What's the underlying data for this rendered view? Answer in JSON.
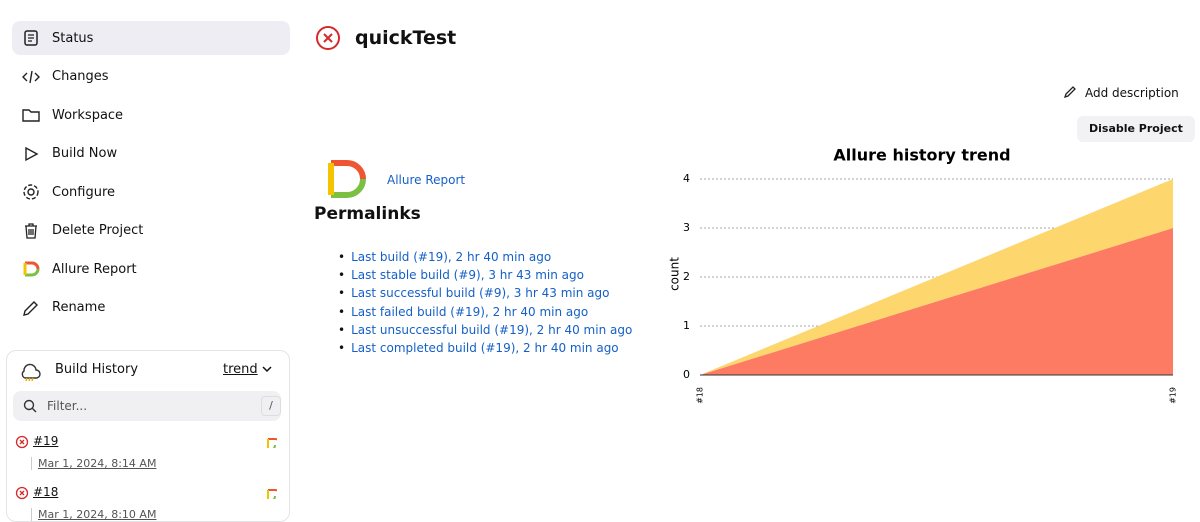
{
  "sidebar": {
    "items": [
      "Status",
      "Changes",
      "Workspace",
      "Build Now",
      "Configure",
      "Delete Project",
      "Allure Report",
      "Rename"
    ]
  },
  "build_history": {
    "title": "Build History",
    "trend": "trend",
    "filter_placeholder": "Filter...",
    "shortcut": "/",
    "builds": [
      {
        "number": "#19",
        "date": "Mar 1, 2024, 8:14 AM"
      },
      {
        "number": "#18",
        "date": "Mar 1, 2024, 8:10 AM"
      }
    ]
  },
  "header": {
    "title": "quickTest",
    "add_description": "Add description",
    "disable_project": "Disable Project"
  },
  "allure_link": "Allure Report",
  "permalinks": {
    "title": "Permalinks",
    "links": [
      "Last build (#19), 2 hr 40 min ago",
      "Last stable build (#9), 3 hr 43 min ago",
      "Last successful build (#9), 3 hr 43 min ago",
      "Last failed build (#19), 2 hr 40 min ago",
      "Last unsuccessful build (#19), 2 hr 40 min ago",
      "Last completed build (#19), 2 hr 40 min ago"
    ]
  },
  "chart_data": {
    "type": "stacked_area",
    "title": "Allure history trend",
    "y_label": "count",
    "categories": [
      "#18",
      "#19"
    ],
    "series": [
      {
        "color": "#fd7b62",
        "values": [
          0,
          3
        ]
      },
      {
        "color": "#fdd66e",
        "values": [
          0,
          1
        ]
      }
    ],
    "ylim": [
      0,
      4
    ],
    "yticks": [
      0,
      1,
      2,
      3,
      4
    ],
    "grid": true
  }
}
